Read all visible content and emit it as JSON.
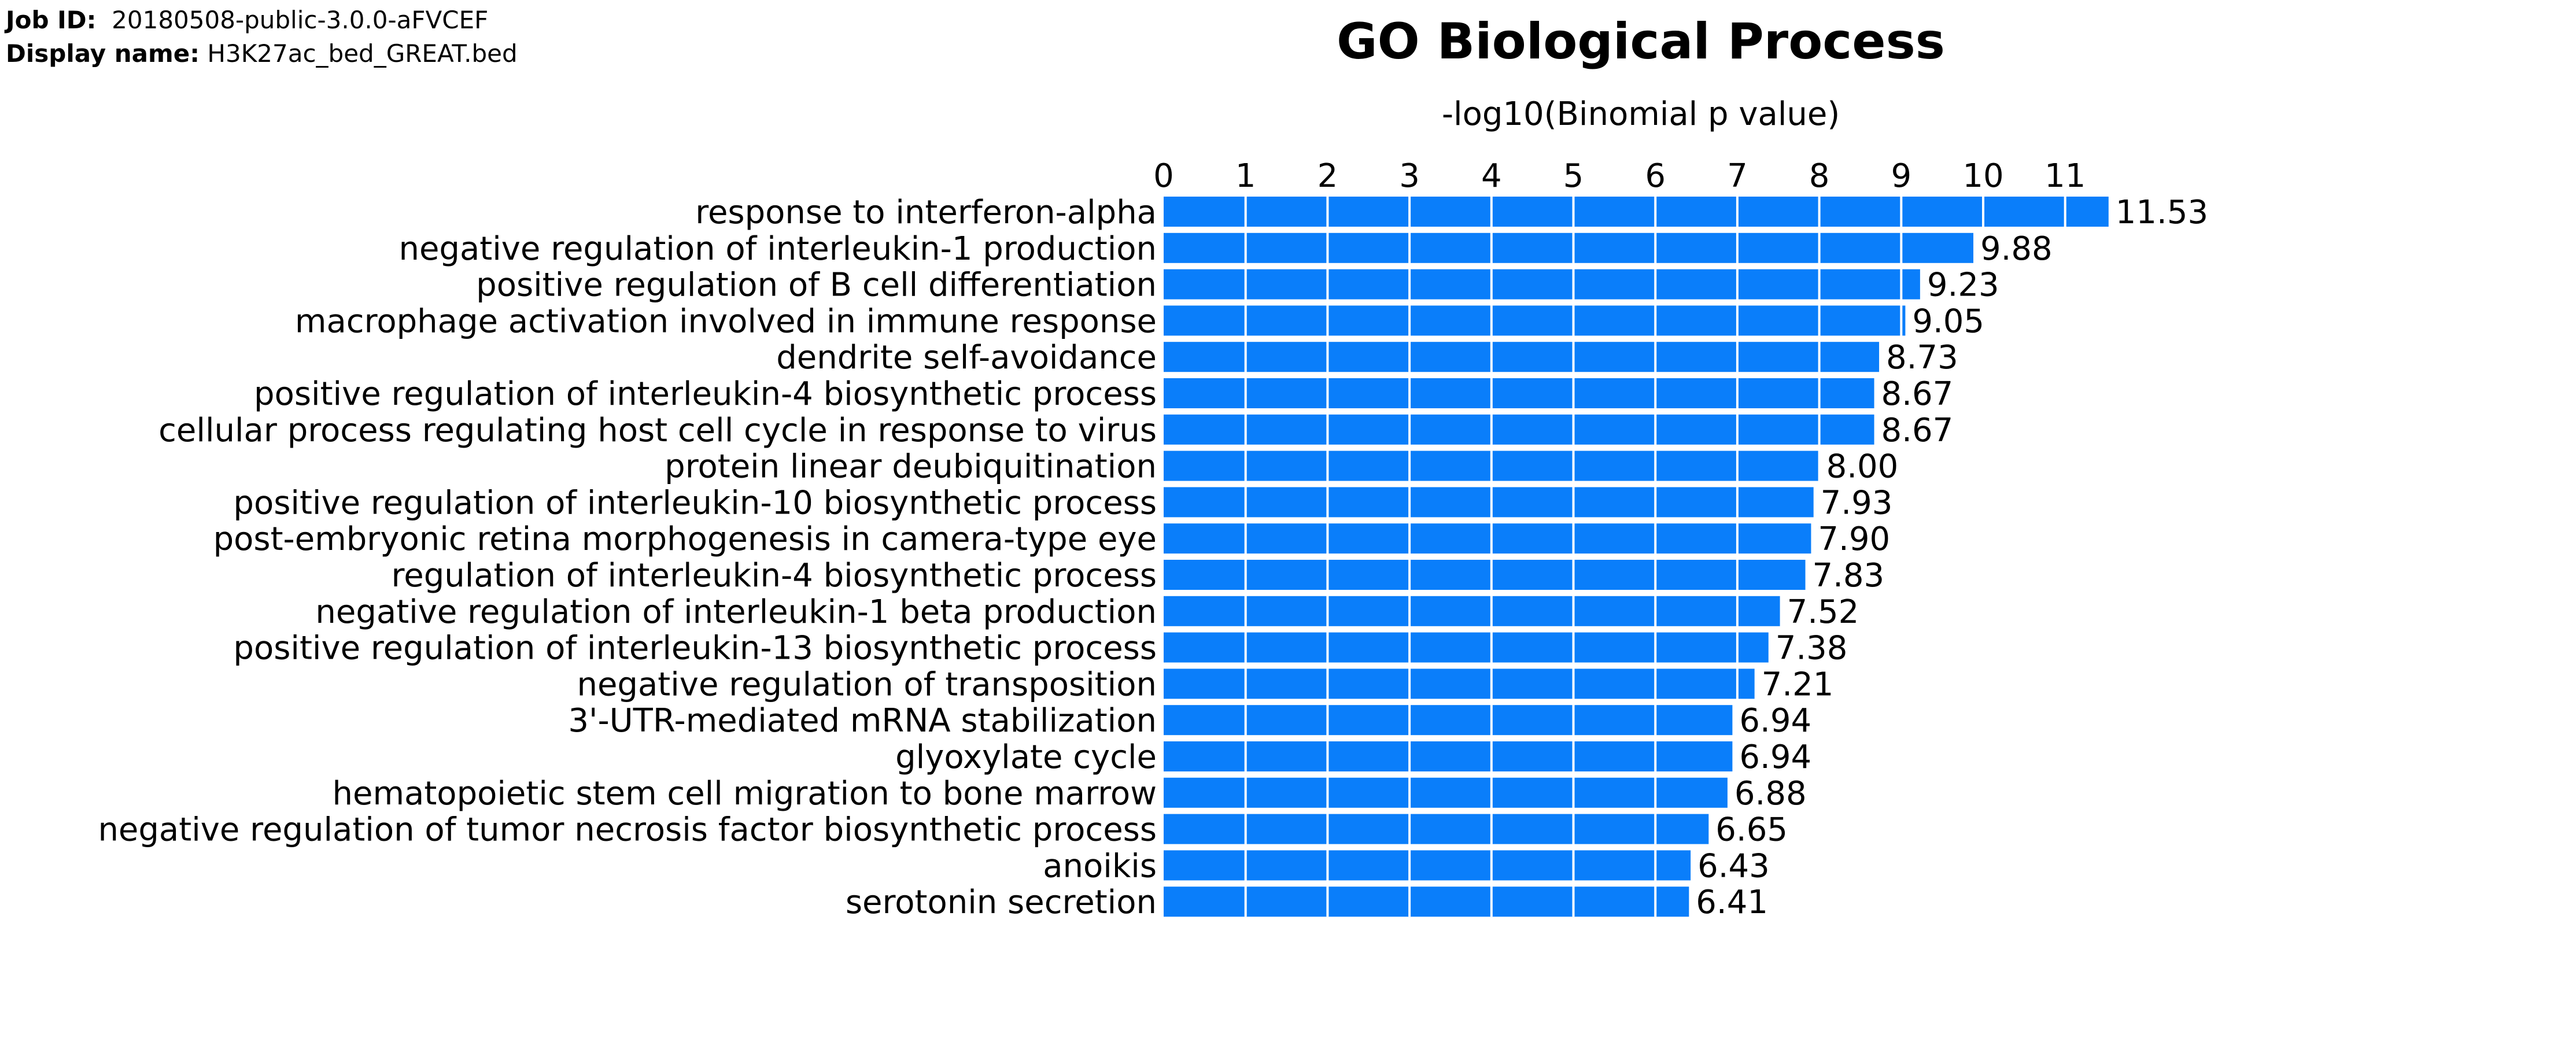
{
  "meta": {
    "job_id_label": "Job ID:",
    "job_id": "20180508-public-3.0.0-aFVCEF",
    "display_name_label": "Display name:",
    "display_name": "H3K27ac_bed_GREAT.bed"
  },
  "chart_data": {
    "type": "bar",
    "orientation": "horizontal",
    "title": "GO Biological Process",
    "xlabel": "-log10(Binomial p value)",
    "ylabel": "",
    "xlim": [
      0,
      11.6
    ],
    "x_ticks": [
      0,
      1,
      2,
      3,
      4,
      5,
      6,
      7,
      8,
      9,
      10,
      11
    ],
    "x_axis_position": "top",
    "grid": true,
    "bar_color": "#0a7efa",
    "grid_color": "#ffffff",
    "categories": [
      "response to interferon-alpha",
      "negative regulation of interleukin-1 production",
      "positive regulation of B cell differentiation",
      "macrophage activation involved in immune response",
      "dendrite self-avoidance",
      "positive regulation of interleukin-4 biosynthetic process",
      "cellular process regulating host cell cycle in response to virus",
      "protein linear deubiquitination",
      "positive regulation of interleukin-10 biosynthetic process",
      "post-embryonic retina morphogenesis in camera-type eye",
      "regulation of interleukin-4 biosynthetic process",
      "negative regulation of interleukin-1 beta production",
      "positive regulation of interleukin-13 biosynthetic process",
      "negative regulation of transposition",
      "3'-UTR-mediated mRNA stabilization",
      "glyoxylate cycle",
      "hematopoietic stem cell migration to bone marrow",
      "negative regulation of tumor necrosis factor biosynthetic process",
      "anoikis",
      "serotonin secretion"
    ],
    "values": [
      11.53,
      9.88,
      9.23,
      9.05,
      8.73,
      8.67,
      8.67,
      8.0,
      7.93,
      7.9,
      7.83,
      7.52,
      7.38,
      7.21,
      6.94,
      6.94,
      6.88,
      6.65,
      6.43,
      6.41
    ],
    "value_labels": [
      "11.53",
      "9.88",
      "9.23",
      "9.05",
      "8.73",
      "8.67",
      "8.67",
      "8.00",
      "7.93",
      "7.90",
      "7.83",
      "7.52",
      "7.38",
      "7.21",
      "6.94",
      "6.94",
      "6.88",
      "6.65",
      "6.43",
      "6.41"
    ]
  }
}
